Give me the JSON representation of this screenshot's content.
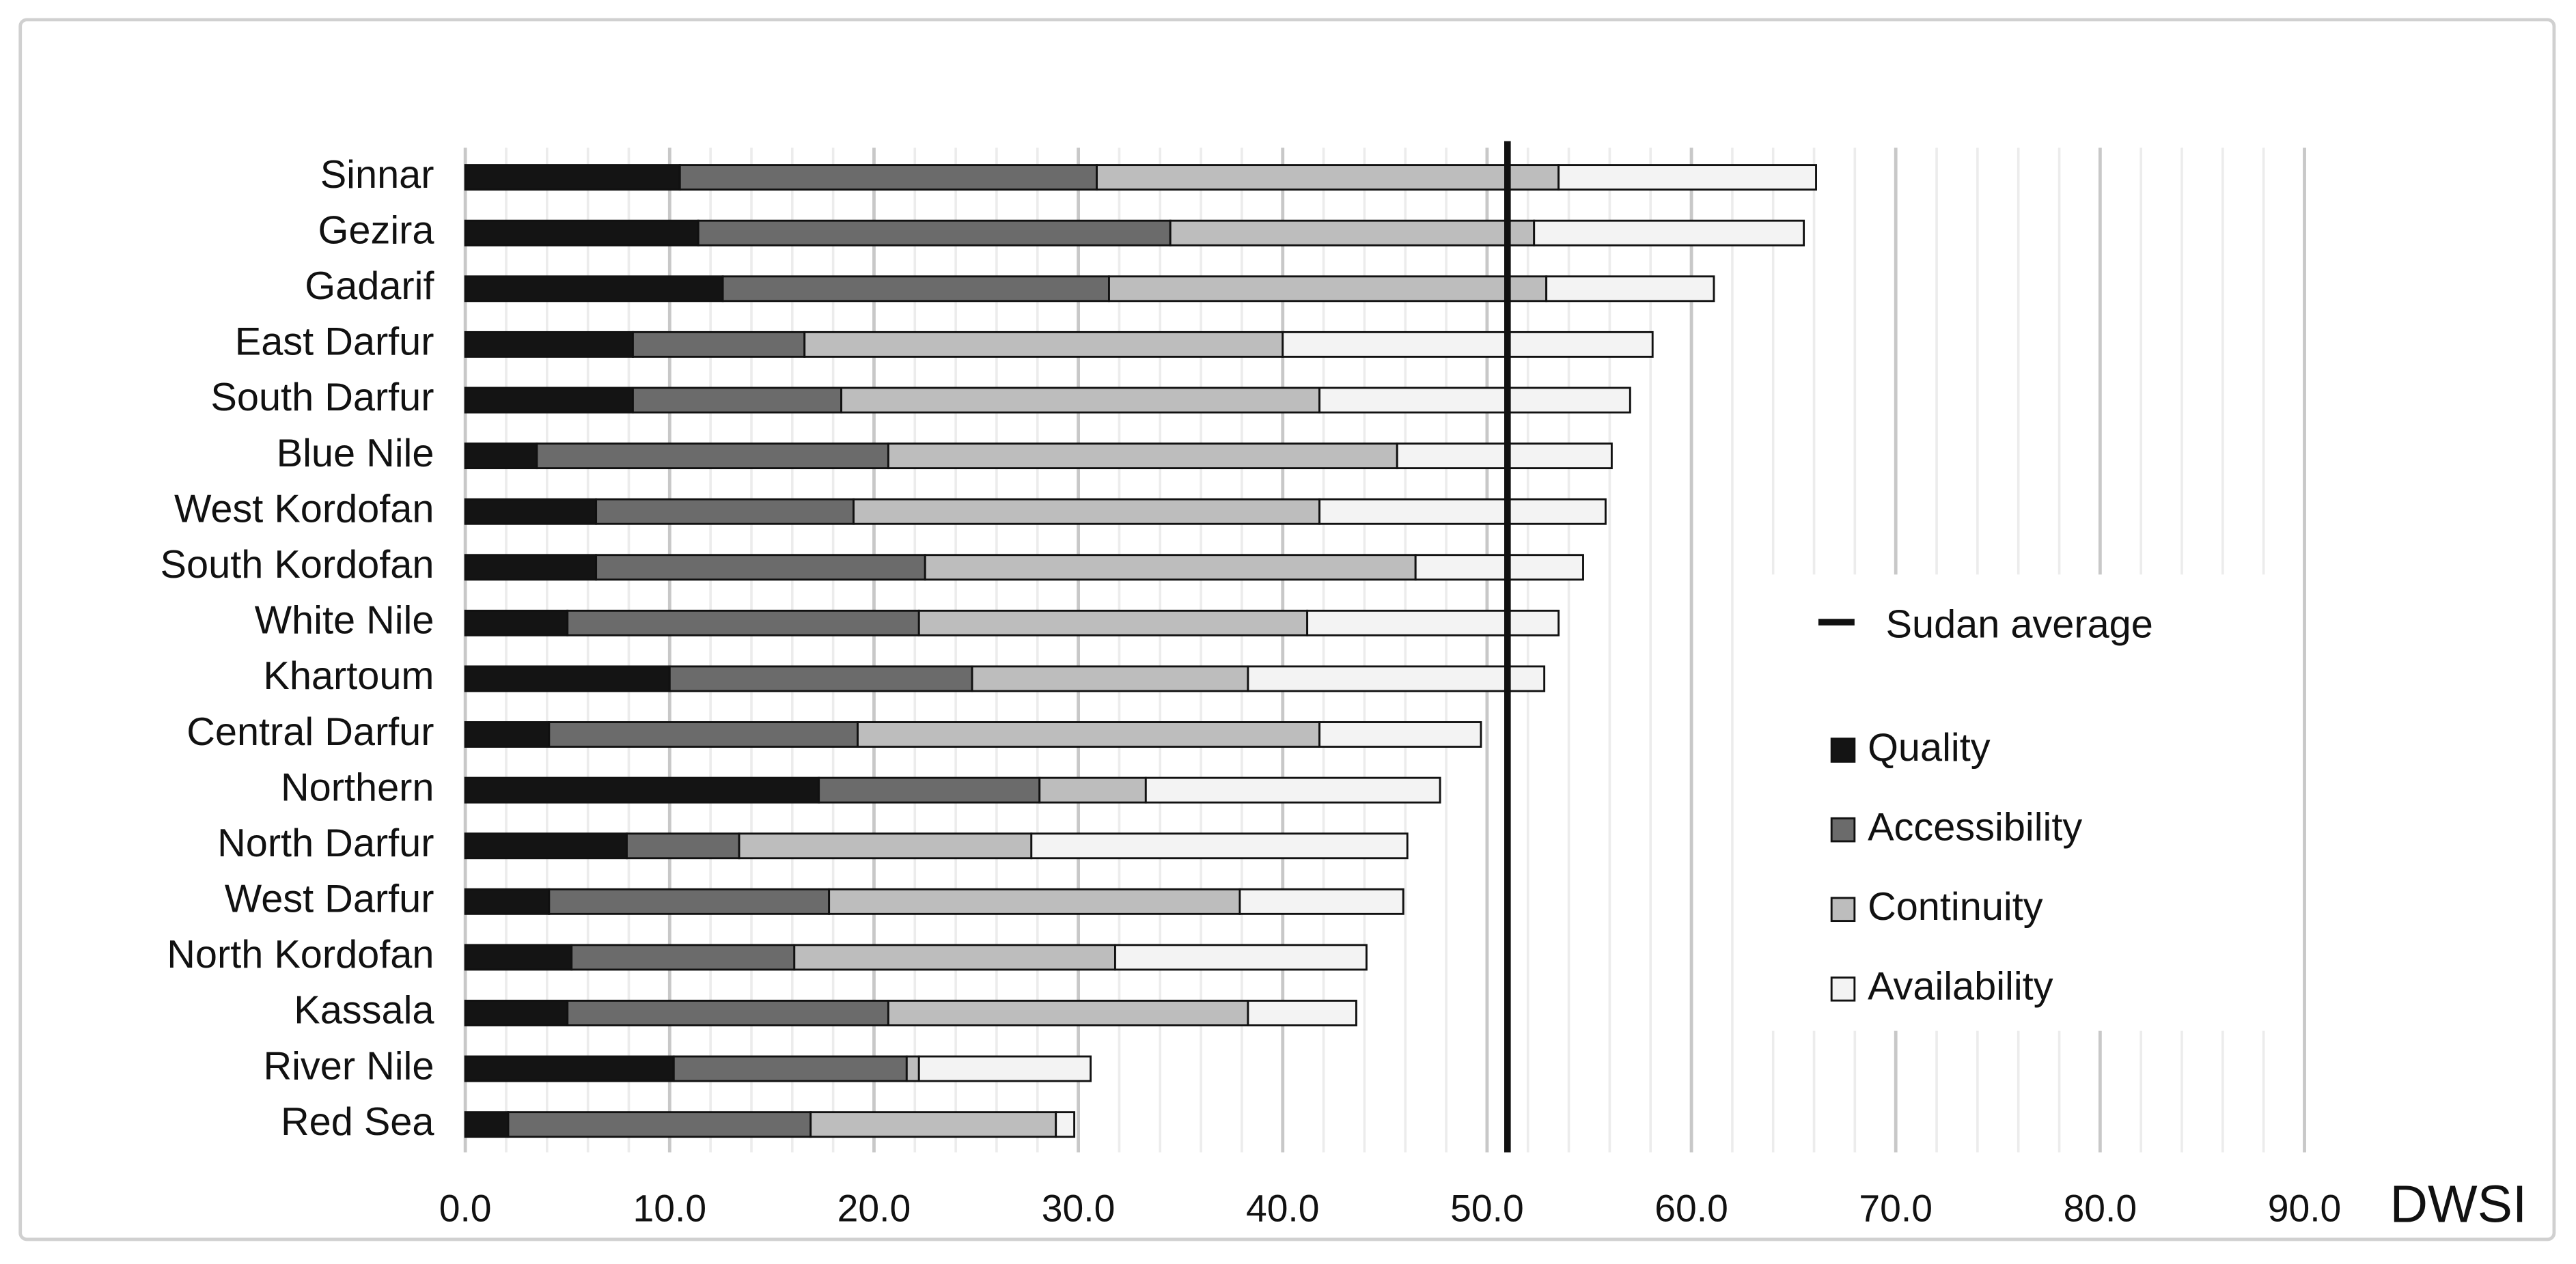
{
  "chart_data": {
    "type": "stacked_barh",
    "x_label": "DWSI",
    "categories": [
      "Sinnar",
      "Gezira",
      "Gadarif",
      "East Darfur",
      "South Darfur",
      "Blue Nile",
      "West Kordofan",
      "South Kordofan",
      "White Nile",
      "Khartoum",
      "Central Darfur",
      "Northern",
      "North Darfur",
      "West Darfur",
      "North Kordofan",
      "Kassala",
      "River Nile",
      "Red Sea"
    ],
    "series": [
      {
        "name": "Quality",
        "color": "#141414",
        "values": [
          10.5,
          11.4,
          12.6,
          8.2,
          8.2,
          3.5,
          6.4,
          6.4,
          5.0,
          10.0,
          4.1,
          17.3,
          7.9,
          4.1,
          5.2,
          5.0,
          10.2,
          2.1
        ]
      },
      {
        "name": "Accessibility",
        "color": "#6b6b6b",
        "values": [
          20.4,
          23.1,
          18.9,
          8.4,
          10.2,
          17.2,
          12.6,
          16.1,
          17.2,
          14.8,
          15.1,
          10.8,
          5.5,
          13.7,
          10.9,
          15.7,
          11.4,
          14.8
        ]
      },
      {
        "name": "Continuity",
        "color": "#bdbdbd",
        "values": [
          22.6,
          17.8,
          21.4,
          23.4,
          23.4,
          24.9,
          22.8,
          24.0,
          19.0,
          13.5,
          22.6,
          5.2,
          14.3,
          20.1,
          15.7,
          17.6,
          0.6,
          12.0
        ]
      },
      {
        "name": "Availability",
        "color": "#f3f3f3",
        "values": [
          12.6,
          13.2,
          8.2,
          18.1,
          15.2,
          10.5,
          14.0,
          8.2,
          12.3,
          14.5,
          7.9,
          14.4,
          18.4,
          8.0,
          12.3,
          5.3,
          8.4,
          0.9
        ]
      }
    ],
    "average": {
      "name": "Sudan average",
      "value": 51.0
    },
    "xlim": [
      0,
      90
    ],
    "xticks": [
      {
        "value": 0,
        "label": "0.0"
      },
      {
        "value": 10,
        "label": "10.0"
      },
      {
        "value": 20,
        "label": "20.0"
      },
      {
        "value": 30,
        "label": "30.0"
      },
      {
        "value": 40,
        "label": "40.0"
      },
      {
        "value": 50,
        "label": "50.0"
      },
      {
        "value": 60,
        "label": "60.0"
      },
      {
        "value": 70,
        "label": "70.0"
      },
      {
        "value": 80,
        "label": "80.0"
      },
      {
        "value": 90,
        "label": "90.0"
      }
    ],
    "minor_xticks": [
      2,
      4,
      6,
      8,
      12,
      14,
      16,
      18,
      22,
      24,
      26,
      28,
      32,
      34,
      36,
      38,
      42,
      44,
      46,
      48,
      52,
      54,
      56,
      58,
      62,
      64,
      66,
      68,
      72,
      74,
      76,
      78,
      82,
      84,
      86,
      88
    ],
    "grid": true
  }
}
